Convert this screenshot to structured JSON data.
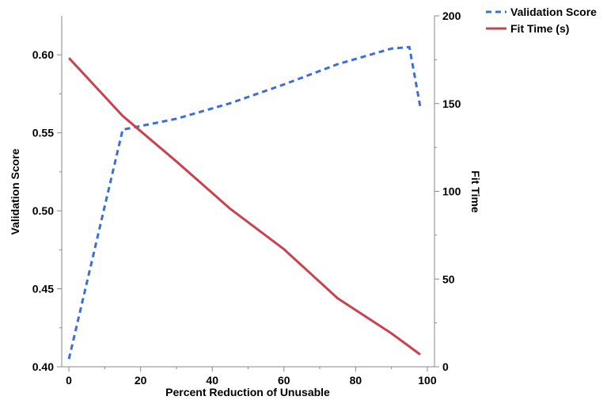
{
  "chart_data": {
    "type": "line",
    "xlabel": "Percent Reduction of Unusable",
    "ylabel_left": "Validation Score",
    "ylabel_right": "Fit Time",
    "xlim": [
      -2,
      102
    ],
    "ylim_left": [
      0.4,
      0.625
    ],
    "ylim_right": [
      0,
      200
    ],
    "x_ticks": [
      0,
      20,
      40,
      60,
      80,
      100
    ],
    "y_left_ticks": [
      0.4,
      0.45,
      0.5,
      0.55,
      0.6
    ],
    "y_left_tick_labels": [
      "0.40",
      "0.45",
      "0.50",
      "0.55",
      "0.60"
    ],
    "y_right_ticks": [
      0,
      50,
      100,
      150,
      200
    ],
    "legend_position": "top-right",
    "grid": false,
    "series": [
      {
        "name": "Validation Score",
        "axis": "left",
        "style": "dashed",
        "color": "#3b6fd8",
        "x": [
          0,
          15,
          30,
          45,
          60,
          75,
          90,
          95,
          98
        ],
        "y": [
          0.405,
          0.552,
          0.559,
          0.569,
          0.581,
          0.594,
          0.604,
          0.605,
          0.567
        ]
      },
      {
        "name": "Fit Time (s)",
        "axis": "right",
        "style": "solid",
        "color": "#c8434f",
        "x": [
          0,
          15,
          30,
          45,
          60,
          75,
          90,
          98
        ],
        "y": [
          176,
          143,
          117,
          90,
          67,
          39,
          19,
          7
        ]
      }
    ]
  }
}
